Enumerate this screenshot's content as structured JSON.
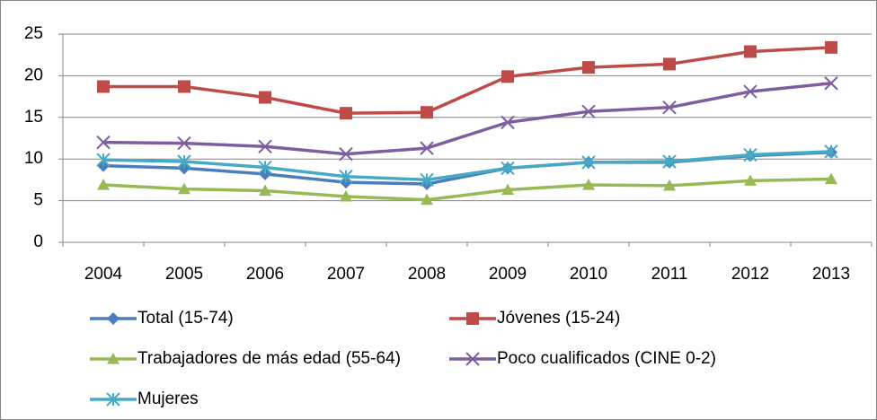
{
  "chart_data": {
    "type": "line",
    "categories": [
      "2004",
      "2005",
      "2006",
      "2007",
      "2008",
      "2009",
      "2010",
      "2011",
      "2012",
      "2013"
    ],
    "series": [
      {
        "name": "Total (15-74)",
        "color": "#4a7ebb",
        "marker": "diamond",
        "values": [
          9.2,
          8.9,
          8.2,
          7.2,
          7.0,
          8.9,
          9.6,
          9.6,
          10.4,
          10.8
        ]
      },
      {
        "name": "Jóvenes (15-24)",
        "color": "#be4b48",
        "marker": "square",
        "values": [
          18.7,
          18.7,
          17.4,
          15.5,
          15.6,
          19.9,
          21.0,
          21.4,
          22.9,
          23.4
        ]
      },
      {
        "name": "Trabajadores de más edad (55-64)",
        "color": "#98b954",
        "marker": "triangle",
        "values": [
          6.9,
          6.4,
          6.2,
          5.5,
          5.1,
          6.3,
          6.9,
          6.8,
          7.4,
          7.6
        ]
      },
      {
        "name": "Poco cualificados (CINE 0-2)",
        "color": "#7d5fa0",
        "marker": "x",
        "values": [
          12.0,
          11.9,
          11.5,
          10.6,
          11.3,
          14.4,
          15.7,
          16.2,
          18.1,
          19.1
        ]
      },
      {
        "name": "Mujeres",
        "color": "#46aac5",
        "marker": "asterisk",
        "values": [
          9.9,
          9.7,
          9.0,
          7.9,
          7.5,
          8.9,
          9.6,
          9.7,
          10.5,
          10.9
        ]
      }
    ],
    "ylim": [
      0,
      25
    ],
    "yticks": [
      0,
      5,
      10,
      15,
      20,
      25
    ],
    "grid": true
  }
}
